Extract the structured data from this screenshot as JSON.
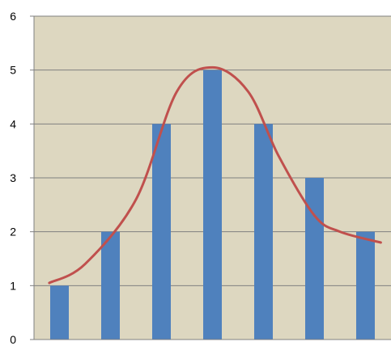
{
  "chart_data": {
    "type": "bar",
    "title": "",
    "xlabel": "",
    "ylabel": "",
    "categories": [
      "",
      "",
      "",
      "",
      "",
      "",
      ""
    ],
    "values": [
      1,
      2,
      4,
      5,
      4,
      3,
      2
    ],
    "ylim": [
      0,
      6
    ],
    "yticks": [
      "0",
      "1",
      "2",
      "3",
      "4",
      "5",
      "6"
    ],
    "grid": true,
    "legend": "none",
    "curve": {
      "type": "line",
      "smooth": true,
      "x": [
        -0.2,
        0.5,
        1.5,
        2.3,
        3.0,
        3.7,
        4.3,
        5.0,
        5.5,
        6.3
      ],
      "y": [
        1.05,
        1.4,
        2.6,
        4.6,
        5.05,
        4.6,
        3.4,
        2.3,
        2.0,
        1.8
      ]
    }
  },
  "colors": {
    "plot_background": "#ddd7c0",
    "bar": "#4f81bd",
    "curve": "#c0504d",
    "grid": "#808080",
    "axis": "#808080"
  }
}
